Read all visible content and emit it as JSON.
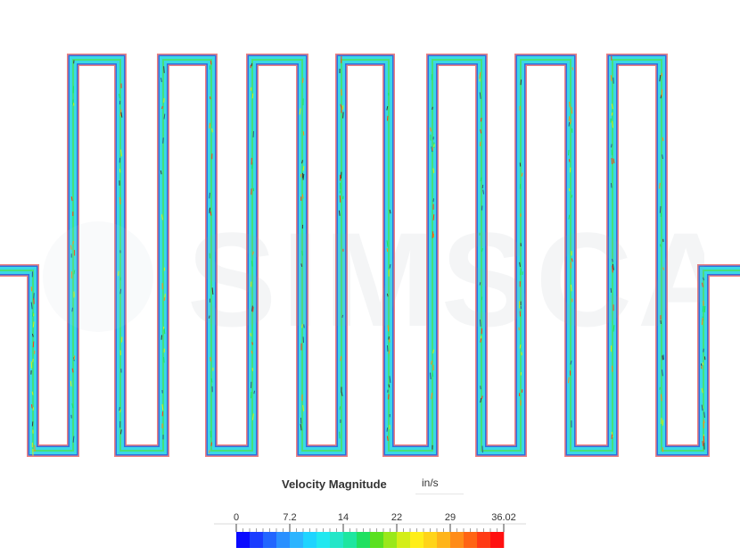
{
  "legend": {
    "title": "Velocity Magnitude",
    "unit": "in/s",
    "ticks": [
      "0",
      "7.2",
      "14",
      "22",
      "29",
      "36.02"
    ],
    "range": [
      0,
      36.02
    ],
    "colormap": [
      "#0a0aff",
      "#1a3cff",
      "#2266ff",
      "#2a90ff",
      "#2cb4ff",
      "#1fd4ff",
      "#22e8f0",
      "#24e6c8",
      "#1ee6a0",
      "#20e060",
      "#5ae020",
      "#9ae81a",
      "#d4ee18",
      "#ffee1a",
      "#ffd41a",
      "#ffb41a",
      "#ff8c18",
      "#ff6414",
      "#ff3a14",
      "#ff1010"
    ]
  },
  "watermark": {
    "text": "SIMSCALE"
  },
  "viewport": {
    "wall_color": "#f08080",
    "channel_color": "#3ad7e6"
  }
}
